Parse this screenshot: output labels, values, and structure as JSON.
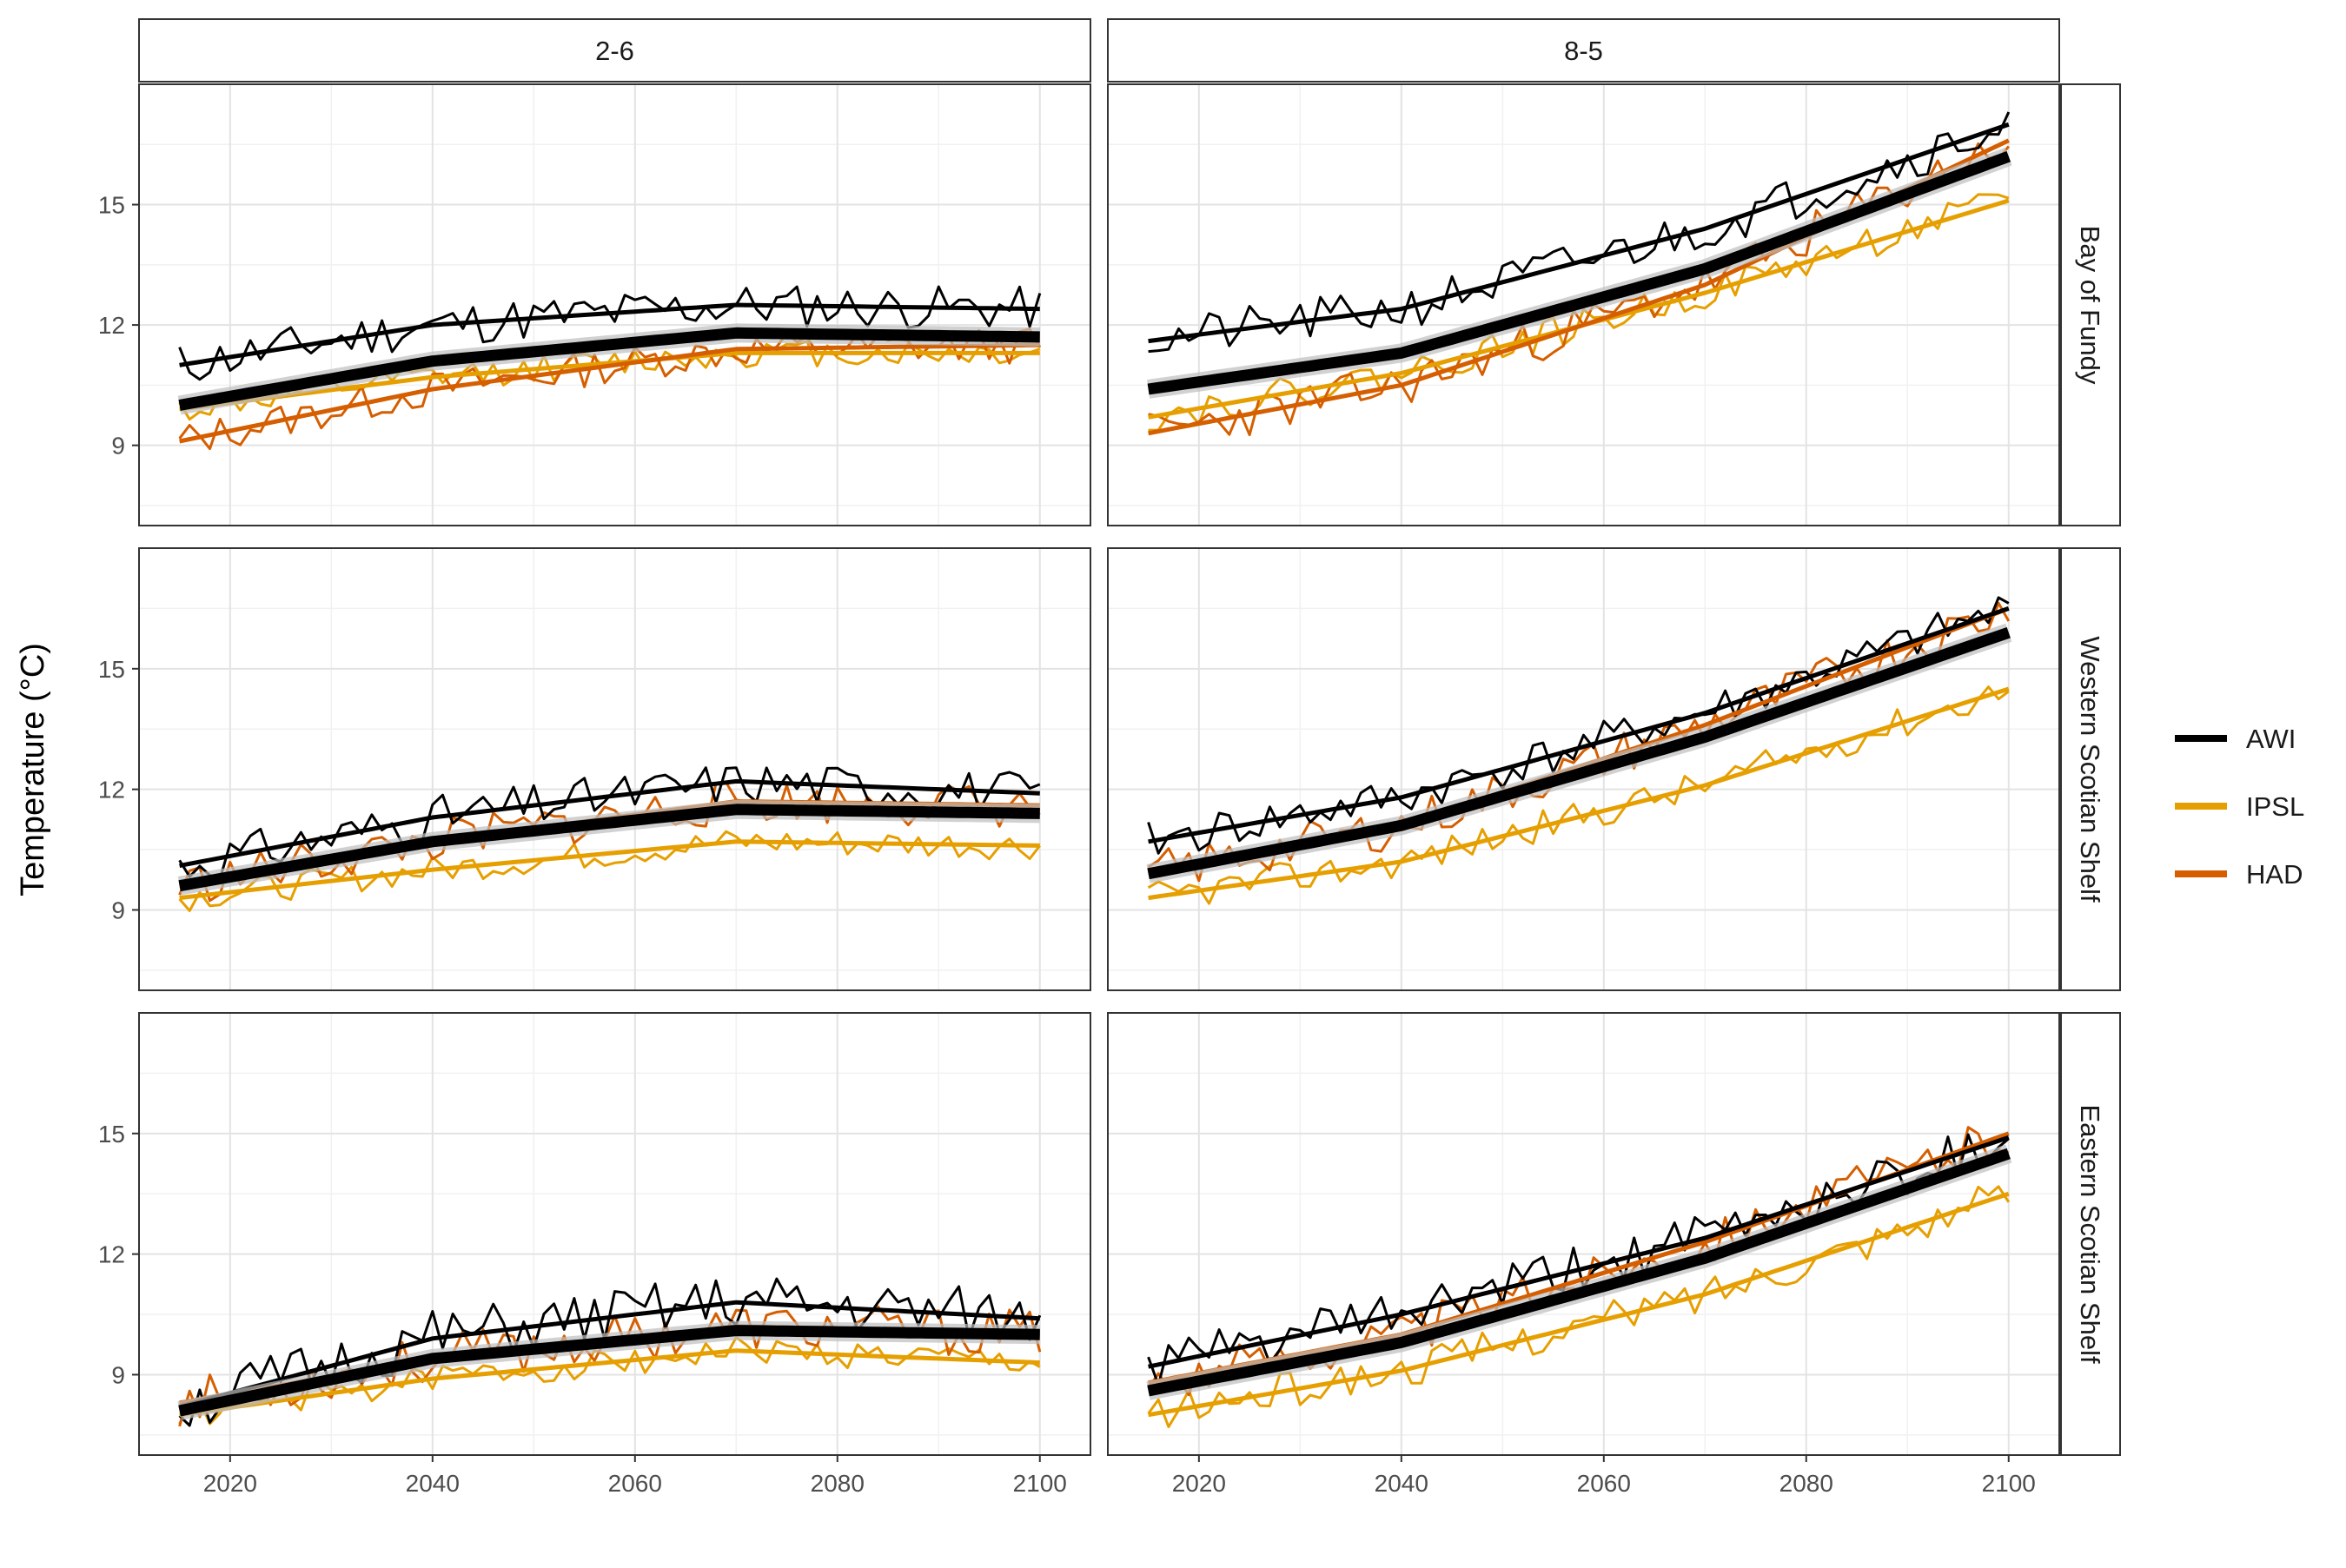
{
  "chart_data": {
    "type": "line",
    "ylabel": "Temperature (°C)",
    "xlabel": "",
    "xlim": [
      2011,
      2105
    ],
    "ylim": [
      7,
      18
    ],
    "x_ticks": [
      2020,
      2040,
      2060,
      2080,
      2100
    ],
    "y_ticks": [
      9,
      12,
      15
    ],
    "grid": true,
    "legend_position": "right",
    "colors": {
      "AWI": "#000000",
      "IPSL": "#E69F00",
      "HAD": "#D55E00"
    },
    "columns": [
      "2-6",
      "8-5"
    ],
    "rows": [
      "Bay of Fundy",
      "Western Scotian Shelf",
      "Eastern Scotian Shelf"
    ],
    "legend": [
      {
        "name": "AWI",
        "color": "#000000"
      },
      {
        "name": "IPSL",
        "color": "#E69F00"
      },
      {
        "name": "HAD",
        "color": "#D55E00"
      }
    ],
    "panels": [
      {
        "row": "Bay of Fundy",
        "column": "2-6",
        "series": [
          {
            "name": "AWI",
            "trend": [
              [
                2015,
                11.0
              ],
              [
                2040,
                12.0
              ],
              [
                2070,
                12.5
              ],
              [
                2100,
                12.4
              ]
            ],
            "noise": 0.55,
            "seed": 11
          },
          {
            "name": "IPSL",
            "trend": [
              [
                2015,
                9.9
              ],
              [
                2040,
                10.7
              ],
              [
                2070,
                11.3
              ],
              [
                2100,
                11.3
              ]
            ],
            "noise": 0.35,
            "seed": 12
          },
          {
            "name": "HAD",
            "trend": [
              [
                2015,
                9.1
              ],
              [
                2040,
                10.4
              ],
              [
                2070,
                11.4
              ],
              [
                2100,
                11.5
              ]
            ],
            "noise": 0.45,
            "seed": 13
          }
        ],
        "mean": [
          [
            2015,
            10.0
          ],
          [
            2040,
            11.1
          ],
          [
            2070,
            11.8
          ],
          [
            2100,
            11.7
          ]
        ]
      },
      {
        "row": "Bay of Fundy",
        "column": "8-5",
        "series": [
          {
            "name": "AWI",
            "trend": [
              [
                2015,
                11.6
              ],
              [
                2040,
                12.4
              ],
              [
                2070,
                14.4
              ],
              [
                2100,
                17.0
              ]
            ],
            "noise": 0.55,
            "seed": 21
          },
          {
            "name": "IPSL",
            "trend": [
              [
                2015,
                9.7
              ],
              [
                2040,
                10.8
              ],
              [
                2070,
                12.8
              ],
              [
                2100,
                15.1
              ]
            ],
            "noise": 0.4,
            "seed": 22
          },
          {
            "name": "HAD",
            "trend": [
              [
                2015,
                9.3
              ],
              [
                2040,
                10.5
              ],
              [
                2070,
                13.0
              ],
              [
                2100,
                16.6
              ]
            ],
            "noise": 0.55,
            "seed": 23
          }
        ],
        "mean": [
          [
            2015,
            10.4
          ],
          [
            2040,
            11.3
          ],
          [
            2070,
            13.4
          ],
          [
            2100,
            16.2
          ]
        ]
      },
      {
        "row": "Western Scotian Shelf",
        "column": "2-6",
        "series": [
          {
            "name": "AWI",
            "trend": [
              [
                2015,
                10.1
              ],
              [
                2040,
                11.3
              ],
              [
                2070,
                12.2
              ],
              [
                2100,
                11.9
              ]
            ],
            "noise": 0.55,
            "seed": 31
          },
          {
            "name": "IPSL",
            "trend": [
              [
                2015,
                9.3
              ],
              [
                2040,
                10.0
              ],
              [
                2070,
                10.7
              ],
              [
                2100,
                10.6
              ]
            ],
            "noise": 0.35,
            "seed": 32
          },
          {
            "name": "HAD",
            "trend": [
              [
                2015,
                9.6
              ],
              [
                2040,
                10.7
              ],
              [
                2070,
                11.7
              ],
              [
                2100,
                11.6
              ]
            ],
            "noise": 0.55,
            "seed": 33
          }
        ],
        "mean": [
          [
            2015,
            9.6
          ],
          [
            2040,
            10.7
          ],
          [
            2070,
            11.5
          ],
          [
            2100,
            11.4
          ]
        ]
      },
      {
        "row": "Western Scotian Shelf",
        "column": "8-5",
        "series": [
          {
            "name": "AWI",
            "trend": [
              [
                2015,
                10.7
              ],
              [
                2040,
                11.8
              ],
              [
                2070,
                13.9
              ],
              [
                2100,
                16.5
              ]
            ],
            "noise": 0.5,
            "seed": 41
          },
          {
            "name": "IPSL",
            "trend": [
              [
                2015,
                9.3
              ],
              [
                2040,
                10.2
              ],
              [
                2070,
                12.1
              ],
              [
                2100,
                14.5
              ]
            ],
            "noise": 0.4,
            "seed": 42
          },
          {
            "name": "HAD",
            "trend": [
              [
                2015,
                9.9
              ],
              [
                2040,
                11.1
              ],
              [
                2070,
                13.6
              ],
              [
                2100,
                16.5
              ]
            ],
            "noise": 0.55,
            "seed": 43
          }
        ],
        "mean": [
          [
            2015,
            9.9
          ],
          [
            2040,
            11.1
          ],
          [
            2070,
            13.3
          ],
          [
            2100,
            15.9
          ]
        ]
      },
      {
        "row": "Eastern Scotian Shelf",
        "column": "2-6",
        "series": [
          {
            "name": "AWI",
            "trend": [
              [
                2015,
                8.2
              ],
              [
                2040,
                9.9
              ],
              [
                2070,
                10.8
              ],
              [
                2100,
                10.4
              ]
            ],
            "noise": 0.7,
            "seed": 51
          },
          {
            "name": "IPSL",
            "trend": [
              [
                2015,
                8.0
              ],
              [
                2040,
                8.9
              ],
              [
                2070,
                9.6
              ],
              [
                2100,
                9.3
              ]
            ],
            "noise": 0.35,
            "seed": 52
          },
          {
            "name": "HAD",
            "trend": [
              [
                2015,
                8.3
              ],
              [
                2040,
                9.4
              ],
              [
                2070,
                10.2
              ],
              [
                2100,
                10.0
              ]
            ],
            "noise": 0.6,
            "seed": 53
          }
        ],
        "mean": [
          [
            2015,
            8.1
          ],
          [
            2040,
            9.4
          ],
          [
            2070,
            10.1
          ],
          [
            2100,
            10.0
          ]
        ]
      },
      {
        "row": "Eastern Scotian Shelf",
        "column": "8-5",
        "series": [
          {
            "name": "AWI",
            "trend": [
              [
                2015,
                9.2
              ],
              [
                2040,
                10.5
              ],
              [
                2070,
                12.4
              ],
              [
                2100,
                14.9
              ]
            ],
            "noise": 0.6,
            "seed": 61
          },
          {
            "name": "IPSL",
            "trend": [
              [
                2015,
                8.0
              ],
              [
                2040,
                9.1
              ],
              [
                2070,
                11.0
              ],
              [
                2100,
                13.5
              ]
            ],
            "noise": 0.45,
            "seed": 62
          },
          {
            "name": "HAD",
            "trend": [
              [
                2015,
                8.8
              ],
              [
                2040,
                10.0
              ],
              [
                2070,
                12.3
              ],
              [
                2100,
                15.0
              ]
            ],
            "noise": 0.55,
            "seed": 63
          }
        ],
        "mean": [
          [
            2015,
            8.6
          ],
          [
            2040,
            9.8
          ],
          [
            2070,
            11.9
          ],
          [
            2100,
            14.5
          ]
        ]
      }
    ]
  }
}
